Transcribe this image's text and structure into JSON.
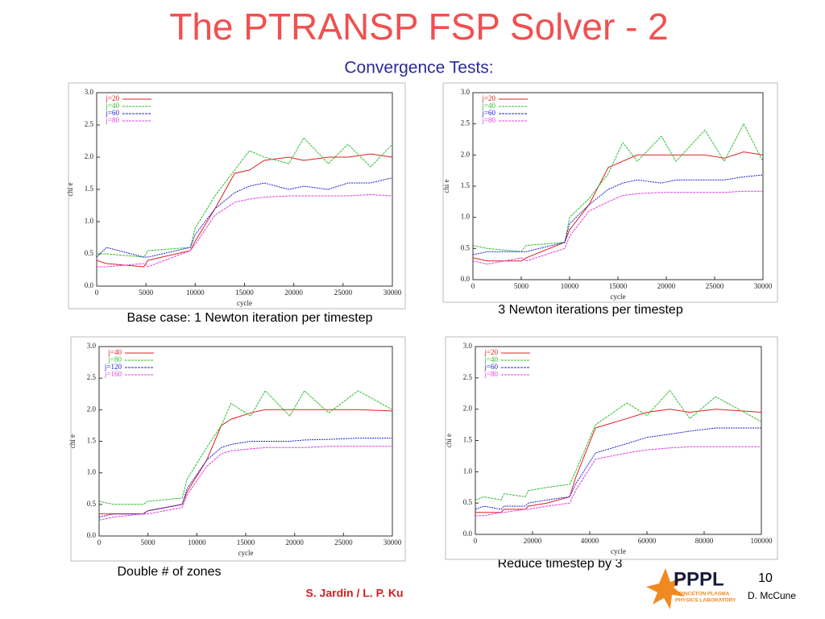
{
  "slide": {
    "title": "The PTRANSP FSP Solver - 2",
    "subtitle": "Convergence Tests:",
    "captions": [
      "Base case: 1 Newton iteration per timestep",
      "3 Newton iterations per timestep",
      "Double # of zones",
      "Reduce timestep by 3"
    ],
    "authors": "S. Jardin / L. P. Ku",
    "page_number": "10",
    "presenter": "D. McCune",
    "logo": {
      "name": "PPPL",
      "line1": "PRINCETON PLASMA",
      "line2": "PHYSICS LABORATORY"
    }
  },
  "chart_data": [
    {
      "type": "line",
      "xlabel": "cycle",
      "ylabel": "chi e",
      "legend": "top-left",
      "grid": false,
      "x": [
        0,
        1000,
        4800,
        5200,
        9500,
        10000,
        12000,
        14000,
        15500,
        17000,
        19500,
        21000,
        23500,
        25500,
        27800,
        30000
      ],
      "xlim": [
        0,
        30000
      ],
      "xticks": [
        0,
        5000,
        10000,
        15000,
        20000,
        25000,
        30000
      ],
      "ylim": [
        0,
        3
      ],
      "yticks": [
        {
          "value": 0,
          "label": "0.0"
        },
        {
          "value": 0.5,
          "label": "0.5"
        },
        {
          "value": 1,
          "label": "1.0"
        },
        {
          "value": 1.5,
          "label": "1.5"
        },
        {
          "value": 2,
          "label": "2.0"
        },
        {
          "value": 2.5,
          "label": "2.5"
        },
        {
          "value": 3,
          "label": "3.0"
        }
      ],
      "series": [
        {
          "name": "j=20",
          "color": "#e02020",
          "values": [
            0.4,
            0.35,
            0.3,
            0.4,
            0.55,
            0.7,
            1.2,
            1.75,
            1.8,
            1.95,
            2.0,
            1.95,
            2.0,
            2.0,
            2.05,
            2.0
          ]
        },
        {
          "name": "j=40",
          "color": "#30c030",
          "values": [
            0.5,
            0.5,
            0.45,
            0.55,
            0.6,
            0.9,
            1.4,
            1.8,
            2.1,
            2.0,
            1.9,
            2.3,
            1.9,
            2.2,
            1.85,
            2.2
          ]
        },
        {
          "name": "j=60",
          "color": "#2020d0",
          "values": [
            0.45,
            0.6,
            0.45,
            0.45,
            0.6,
            0.8,
            1.2,
            1.45,
            1.55,
            1.6,
            1.5,
            1.55,
            1.5,
            1.6,
            1.6,
            1.68
          ]
        },
        {
          "name": "j=80",
          "color": "#e040e0",
          "values": [
            0.3,
            0.3,
            0.35,
            0.3,
            0.55,
            0.65,
            1.1,
            1.3,
            1.35,
            1.38,
            1.4,
            1.4,
            1.4,
            1.4,
            1.42,
            1.4
          ]
        }
      ]
    },
    {
      "type": "line",
      "xlabel": "cycle",
      "ylabel": "chi e",
      "legend": "top-left",
      "grid": false,
      "x": [
        0,
        1500,
        5000,
        5500,
        9500,
        10000,
        12000,
        14000,
        15500,
        17000,
        19500,
        21000,
        24000,
        26000,
        28000,
        30000
      ],
      "xlim": [
        0,
        30000
      ],
      "xticks": [
        0,
        5000,
        10000,
        15000,
        20000,
        25000,
        30000
      ],
      "ylim": [
        0,
        3
      ],
      "yticks": [
        {
          "value": 0,
          "label": "0.0"
        },
        {
          "value": 0.5,
          "label": "0.5"
        },
        {
          "value": 1,
          "label": "1.0"
        },
        {
          "value": 1.5,
          "label": "1.5"
        },
        {
          "value": 2,
          "label": "2.0"
        },
        {
          "value": 2.5,
          "label": "2.5"
        },
        {
          "value": 3,
          "label": "3.0"
        }
      ],
      "series": [
        {
          "name": "j=20",
          "color": "#e02020",
          "values": [
            0.35,
            0.3,
            0.3,
            0.35,
            0.6,
            0.8,
            1.2,
            1.8,
            1.9,
            2.0,
            2.0,
            2.0,
            2.0,
            1.95,
            2.05,
            2.0
          ]
        },
        {
          "name": "j=40",
          "color": "#30c030",
          "values": [
            0.55,
            0.5,
            0.45,
            0.55,
            0.6,
            1.0,
            1.3,
            1.7,
            2.2,
            1.9,
            2.3,
            1.9,
            2.4,
            1.9,
            2.5,
            1.9
          ]
        },
        {
          "name": "j=60",
          "color": "#2020d0",
          "values": [
            0.4,
            0.45,
            0.45,
            0.45,
            0.6,
            0.9,
            1.2,
            1.45,
            1.55,
            1.6,
            1.55,
            1.6,
            1.6,
            1.6,
            1.65,
            1.68
          ]
        },
        {
          "name": "j=80",
          "color": "#e040e0",
          "values": [
            0.3,
            0.25,
            0.35,
            0.3,
            0.5,
            0.7,
            1.1,
            1.25,
            1.35,
            1.38,
            1.4,
            1.4,
            1.4,
            1.4,
            1.42,
            1.42
          ]
        }
      ]
    },
    {
      "type": "line",
      "xlabel": "cycle",
      "ylabel": "chi e",
      "legend": "top-left",
      "grid": false,
      "x": [
        0,
        1500,
        4500,
        5000,
        8500,
        9000,
        11000,
        12500,
        13500,
        15500,
        17000,
        19500,
        21000,
        23500,
        26500,
        30000
      ],
      "xlim": [
        0,
        30000
      ],
      "xticks": [
        0,
        5000,
        10000,
        15000,
        20000,
        25000,
        30000
      ],
      "ylim": [
        0,
        3
      ],
      "yticks": [
        {
          "value": 0,
          "label": "0.0"
        },
        {
          "value": 0.5,
          "label": "0.5"
        },
        {
          "value": 1,
          "label": "1.0"
        },
        {
          "value": 1.5,
          "label": "1.5"
        },
        {
          "value": 2,
          "label": "2.0"
        },
        {
          "value": 2.5,
          "label": "2.5"
        },
        {
          "value": 3,
          "label": "3.0"
        }
      ],
      "series": [
        {
          "name": "j=40",
          "color": "#e02020",
          "values": [
            0.35,
            0.35,
            0.35,
            0.4,
            0.5,
            0.7,
            1.2,
            1.75,
            1.85,
            1.95,
            2.0,
            2.0,
            2.0,
            2.0,
            2.0,
            1.98
          ]
        },
        {
          "name": "j=80",
          "color": "#30c030",
          "values": [
            0.55,
            0.5,
            0.5,
            0.55,
            0.6,
            0.9,
            1.4,
            1.75,
            2.1,
            1.9,
            2.3,
            1.9,
            2.3,
            1.95,
            2.3,
            2.0
          ]
        },
        {
          "name": "j=120",
          "color": "#2020d0",
          "values": [
            0.3,
            0.35,
            0.35,
            0.4,
            0.5,
            0.75,
            1.2,
            1.4,
            1.45,
            1.5,
            1.5,
            1.5,
            1.52,
            1.53,
            1.55,
            1.55
          ]
        },
        {
          "name": "j=160",
          "color": "#e040e0",
          "values": [
            0.25,
            0.3,
            0.35,
            0.35,
            0.45,
            0.65,
            1.1,
            1.3,
            1.35,
            1.38,
            1.4,
            1.4,
            1.4,
            1.42,
            1.42,
            1.42
          ]
        }
      ]
    },
    {
      "type": "line",
      "xlabel": "cycle",
      "ylabel": "chi e",
      "legend": "top-left",
      "grid": false,
      "x": [
        0,
        3000,
        9000,
        10000,
        17500,
        18500,
        25000,
        33000,
        35000,
        42000,
        53000,
        60000,
        68000,
        75000,
        84000,
        100000
      ],
      "xlim": [
        0,
        100000
      ],
      "xticks": [
        0,
        20000,
        40000,
        60000,
        80000,
        100000
      ],
      "ylim": [
        0,
        3
      ],
      "yticks": [
        {
          "value": 0,
          "label": "0.0"
        },
        {
          "value": 0.5,
          "label": "0.5"
        },
        {
          "value": 1,
          "label": "1.0"
        },
        {
          "value": 1.5,
          "label": "1.5"
        },
        {
          "value": 2,
          "label": "2.0"
        },
        {
          "value": 2.5,
          "label": "2.5"
        },
        {
          "value": 3,
          "label": "3.0"
        }
      ],
      "series": [
        {
          "name": "j=20",
          "color": "#e02020",
          "values": [
            0.35,
            0.35,
            0.35,
            0.4,
            0.4,
            0.45,
            0.5,
            0.6,
            0.9,
            1.7,
            1.85,
            1.95,
            2.0,
            1.95,
            2.0,
            1.95
          ]
        },
        {
          "name": "j=40",
          "color": "#30c030",
          "values": [
            0.55,
            0.6,
            0.55,
            0.65,
            0.6,
            0.7,
            0.75,
            0.8,
            1.0,
            1.75,
            2.1,
            1.9,
            2.3,
            1.85,
            2.2,
            1.8
          ]
        },
        {
          "name": "j=60",
          "color": "#2020d0",
          "values": [
            0.4,
            0.45,
            0.4,
            0.45,
            0.45,
            0.5,
            0.55,
            0.6,
            0.8,
            1.3,
            1.45,
            1.55,
            1.6,
            1.65,
            1.7,
            1.7
          ]
        },
        {
          "name": "j=80",
          "color": "#e040e0",
          "values": [
            0.3,
            0.3,
            0.35,
            0.35,
            0.4,
            0.4,
            0.45,
            0.5,
            0.7,
            1.2,
            1.3,
            1.35,
            1.38,
            1.4,
            1.4,
            1.4
          ]
        }
      ]
    }
  ]
}
